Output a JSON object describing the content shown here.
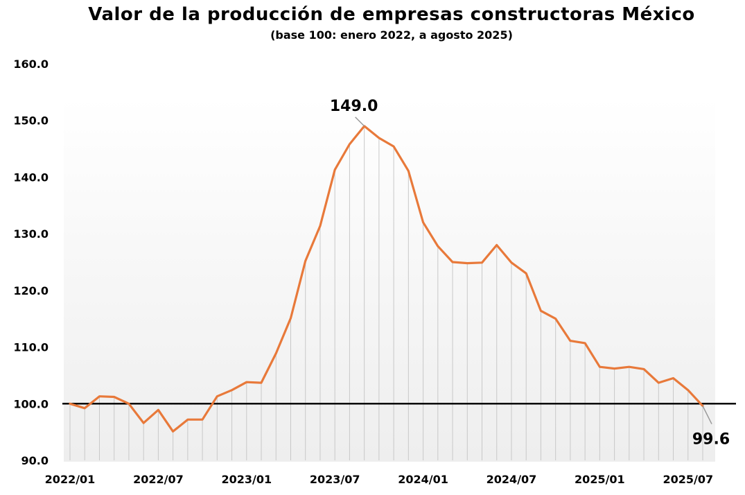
{
  "title": "Valor de la producción de empresas constructoras México",
  "subtitle": "(base 100: enero 2022, a agosto 2025)",
  "colors": {
    "line": "#E8793A",
    "baseline": "#000000",
    "droplines": "#c8c8c8",
    "leader": "#999999"
  },
  "chart_data": {
    "type": "line",
    "title": "Valor de la producción de empresas constructoras México",
    "subtitle": "(base 100: enero 2022, a agosto 2025)",
    "xlabel": "",
    "ylabel": "",
    "ylim": [
      90,
      160
    ],
    "yticks": [
      "90.0",
      "100.0",
      "110.0",
      "120.0",
      "130.0",
      "140.0",
      "150.0",
      "160.0"
    ],
    "xtick_labels": [
      "2022/01",
      "2022/07",
      "2023/01",
      "2023/07",
      "2024/01",
      "2024/07",
      "2025/01",
      "2025/07"
    ],
    "xtick_indices": [
      0,
      6,
      12,
      18,
      24,
      30,
      36,
      42
    ],
    "reference_line": 100,
    "grid": false,
    "legend": "none",
    "x": [
      "2022/01",
      "2022/02",
      "2022/03",
      "2022/04",
      "2022/05",
      "2022/06",
      "2022/07",
      "2022/08",
      "2022/09",
      "2022/10",
      "2022/11",
      "2022/12",
      "2023/01",
      "2023/02",
      "2023/03",
      "2023/04",
      "2023/05",
      "2023/06",
      "2023/07",
      "2023/08",
      "2023/09",
      "2023/10",
      "2023/11",
      "2023/12",
      "2024/01",
      "2024/02",
      "2024/03",
      "2024/04",
      "2024/05",
      "2024/06",
      "2024/07",
      "2024/08",
      "2024/09",
      "2024/10",
      "2024/11",
      "2024/12",
      "2025/01",
      "2025/02",
      "2025/03",
      "2025/04",
      "2025/05",
      "2025/06",
      "2025/07",
      "2025/08"
    ],
    "series": [
      {
        "name": "",
        "values": [
          100.0,
          99.2,
          101.3,
          101.2,
          100.0,
          96.6,
          98.9,
          95.1,
          97.2,
          97.2,
          101.3,
          102.4,
          103.8,
          103.7,
          108.9,
          115.1,
          125.2,
          131.4,
          141.3,
          145.8,
          149.0,
          146.9,
          145.4,
          141.1,
          132.0,
          127.8,
          125.0,
          124.8,
          124.9,
          128.0,
          124.9,
          123.0,
          116.4,
          115.0,
          111.1,
          110.7,
          106.5,
          106.2,
          106.5,
          106.1,
          103.7,
          104.5,
          102.4,
          99.6
        ]
      }
    ],
    "annotations": [
      {
        "index": 20,
        "text": "149.0"
      },
      {
        "index": 43,
        "text": "99.6"
      }
    ]
  }
}
